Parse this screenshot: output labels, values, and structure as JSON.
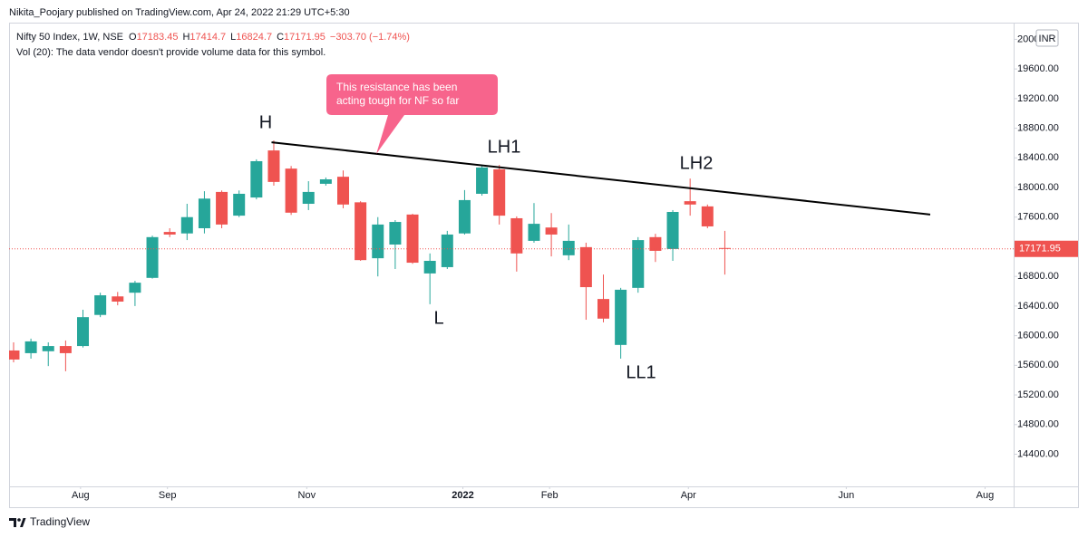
{
  "chart_data": {
    "type": "candlestick",
    "published": "Nikita_Poojary published on TradingView.com, Apr 24, 2022 21:29 UTC+5:30",
    "symbol": "Nifty 50 Index, 1W, NSE",
    "ohlc_keys": [
      "O",
      "H",
      "L",
      "C"
    ],
    "change_text": "−303.70 (−1.74%)",
    "volume_note": "Vol (20): The data vendor doesn't provide volume data for this symbol.",
    "currency": "INR",
    "brand": "TradingView",
    "up_color": "#26a69a",
    "down_color": "#ef5350",
    "grid": false,
    "categories": [
      null,
      null,
      null,
      null,
      null,
      null,
      null,
      null,
      null,
      null,
      null,
      null,
      null,
      null,
      null,
      null,
      null,
      null,
      null,
      null,
      null,
      null,
      null,
      null,
      null,
      null,
      null,
      null,
      null,
      null,
      null,
      null,
      null,
      null,
      null,
      null,
      null,
      null,
      null,
      null,
      null,
      null
    ],
    "open": [
      15800,
      15764,
      15790,
      15860,
      15860,
      16280,
      16530,
      16580,
      16780,
      17400,
      17380,
      17450,
      17940,
      17620,
      17865,
      18500,
      18255,
      17780,
      18050,
      18145,
      17800,
      17045,
      17230,
      17635,
      16840,
      16925,
      17380,
      17915,
      18245,
      17585,
      17280,
      17460,
      17085,
      17195,
      16495,
      15875,
      16645,
      17330,
      17170,
      17815,
      17745,
      17183.45
    ],
    "high": [
      15910,
      15960,
      15910,
      15935,
      16350,
      16580,
      16590,
      16740,
      17350,
      17450,
      17780,
      17950,
      17960,
      17960,
      18380,
      18635,
      18290,
      18085,
      18135,
      18230,
      17815,
      17600,
      17560,
      17645,
      17110,
      17415,
      17965,
      18290,
      18305,
      17610,
      17790,
      17655,
      17500,
      17255,
      16825,
      16645,
      17330,
      17375,
      17695,
      18120,
      17770,
      17414.7
    ],
    "low": [
      15640,
      15690,
      15590,
      15520,
      15840,
      16250,
      16410,
      16400,
      16770,
      17330,
      17290,
      17380,
      17450,
      17600,
      17840,
      18025,
      17630,
      17695,
      18025,
      17720,
      17010,
      16800,
      16900,
      16970,
      16425,
      16900,
      17365,
      17890,
      17500,
      16865,
      17255,
      17070,
      17020,
      16215,
      16180,
      15690,
      16580,
      16995,
      17010,
      17620,
      17450,
      16824.7
    ],
    "close": [
      15678,
      15923,
      15860,
      15764,
      16250,
      16545,
      16460,
      16715,
      17330,
      17365,
      17600,
      17850,
      17500,
      17915,
      18355,
      18075,
      17660,
      17940,
      18110,
      17770,
      17020,
      17500,
      17535,
      16985,
      17010,
      17365,
      17830,
      18270,
      17620,
      17110,
      17510,
      17365,
      17280,
      16655,
      16230,
      16620,
      17290,
      17145,
      17670,
      17770,
      17475,
      17171.95
    ],
    "xlim": [
      -0.26,
      57.65
    ],
    "xticks": [
      {
        "value": 3.86,
        "label": "Aug"
      },
      {
        "value": 8.87,
        "label": "Sep"
      },
      {
        "value": 16.9,
        "label": "Nov"
      },
      {
        "value": 25.9,
        "label": "2022"
      },
      {
        "value": 30.9,
        "label": "Feb"
      },
      {
        "value": 38.9,
        "label": "Apr"
      },
      {
        "value": 48.0,
        "label": "Jun"
      },
      {
        "value": 56.0,
        "label": "Aug"
      }
    ],
    "ylim": [
      13966,
      20225
    ],
    "yticks": [
      {
        "value": 14400,
        "label": "14400.00"
      },
      {
        "value": 14800,
        "label": "14800.00"
      },
      {
        "value": 15200,
        "label": "15200.00"
      },
      {
        "value": 15600,
        "label": "15600.00"
      },
      {
        "value": 16000,
        "label": "16000.00"
      },
      {
        "value": 16400,
        "label": "16400.00"
      },
      {
        "value": 16800,
        "label": "16800.00"
      },
      {
        "value": 17200,
        "label": "17200.00"
      },
      {
        "value": 17600,
        "label": "17600.00"
      },
      {
        "value": 18000,
        "label": "18000.00"
      },
      {
        "value": 18400,
        "label": "18400.00"
      },
      {
        "value": 18800,
        "label": "18800.00"
      },
      {
        "value": 19200,
        "label": "19200.00"
      },
      {
        "value": 19600,
        "label": "19600.00"
      },
      {
        "value": 20000,
        "label": "20000.00"
      }
    ],
    "trendline": {
      "x": [
        14.87,
        52.84
      ],
      "y": [
        18610,
        17635
      ]
    },
    "pattern_labels": [
      "H",
      "LH1",
      "LH2",
      "L",
      "LL1"
    ],
    "callout": [
      "This resistance has been",
      "acting tough for NF so far"
    ]
  }
}
